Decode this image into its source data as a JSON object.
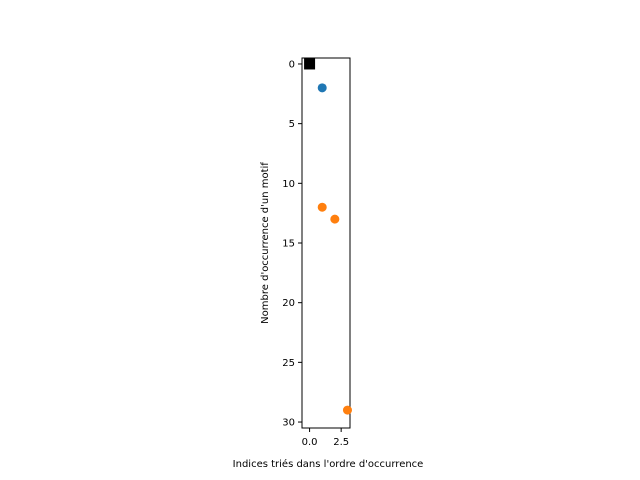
{
  "chart_data": {
    "type": "scatter",
    "title": "",
    "xlabel": "Indices triés dans l'ordre d'occurrence",
    "ylabel": "Nombre d'occurrence d'un motif",
    "xlim": [
      -0.6,
      3.2
    ],
    "ylim": [
      30.5,
      -0.5
    ],
    "y_inverted": true,
    "grid": false,
    "legend": "none",
    "x_ticks": [
      0.0,
      2.5
    ],
    "x_tick_labels": [
      "0.0",
      "2.5"
    ],
    "y_ticks": [
      0,
      5,
      10,
      15,
      20,
      25,
      30
    ],
    "y_tick_labels": [
      "0",
      "5",
      "10",
      "15",
      "20",
      "25",
      "30"
    ],
    "series": [
      {
        "marker": "square",
        "color": "#000000",
        "points": [
          [
            0,
            0
          ]
        ]
      },
      {
        "marker": "circle",
        "color": "#1f77b4",
        "points": [
          [
            1,
            2
          ]
        ]
      },
      {
        "marker": "circle",
        "color": "#ff7f0e",
        "points": [
          [
            1,
            12
          ],
          [
            2,
            13
          ],
          [
            3,
            29
          ]
        ]
      }
    ]
  }
}
